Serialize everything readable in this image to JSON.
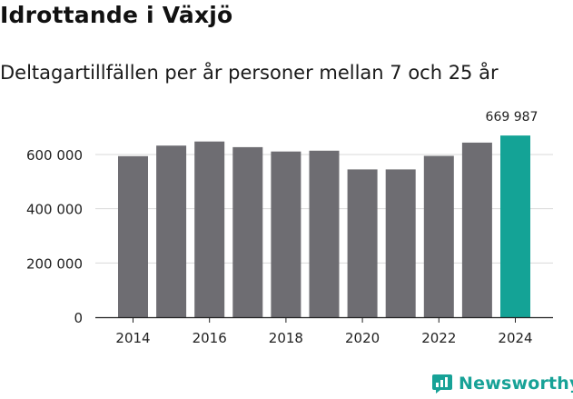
{
  "title": "Idrottande i Växjö",
  "subtitle": "Deltagartillfällen per år personer mellan 7 och 25 år",
  "brand": "Newsworthy",
  "colors": {
    "bar": "#6e6d72",
    "highlight": "#14a396",
    "brand": "#17a297",
    "grid": "#d9d9d9",
    "axis": "#222222"
  },
  "chart_data": {
    "type": "bar",
    "categories": [
      "2014",
      "2015",
      "2016",
      "2017",
      "2018",
      "2019",
      "2020",
      "2021",
      "2022",
      "2023",
      "2024"
    ],
    "values": [
      594000,
      633000,
      648000,
      627000,
      611000,
      614000,
      545000,
      545000,
      595000,
      644000,
      669987
    ],
    "highlight_index": 10,
    "highlight_label": "669 987",
    "ylim": [
      0,
      700000
    ],
    "yticks": [
      0,
      200000,
      400000,
      600000
    ],
    "ytick_labels": [
      "0",
      "200 000",
      "400 000",
      "600 000"
    ],
    "xtick_labels": [
      "2014",
      "2016",
      "2018",
      "2020",
      "2022",
      "2024"
    ],
    "xtick_categories": [
      "2014",
      "2016",
      "2018",
      "2020",
      "2022",
      "2024"
    ],
    "title": "Idrottande i Växjö",
    "xlabel": "",
    "ylabel": ""
  }
}
